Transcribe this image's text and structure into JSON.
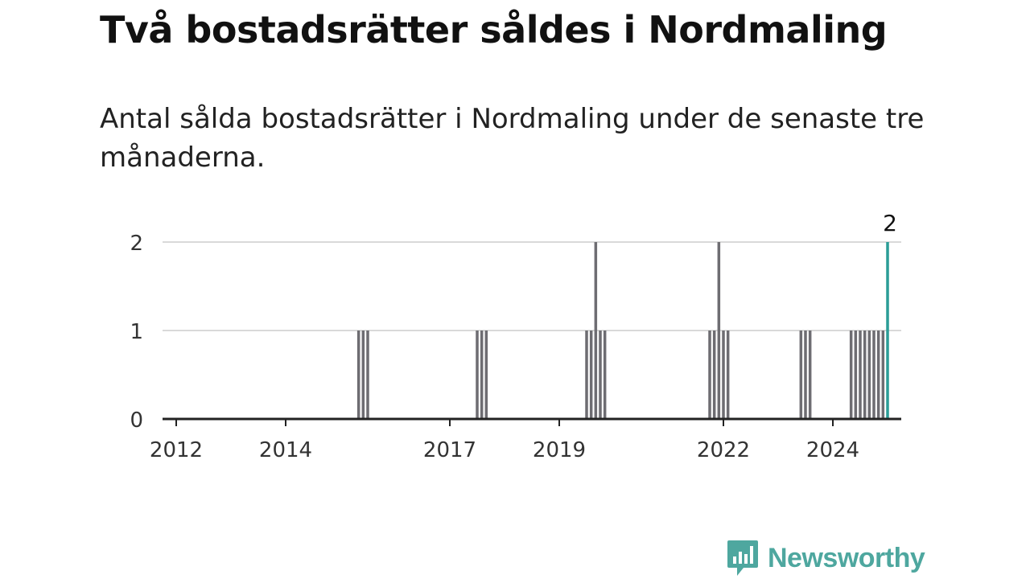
{
  "header": {
    "title": "Två bostadsrätter såldes i Nordmaling",
    "subtitle": "Antal sålda bostadsrätter i Nordmaling under de senaste tre månaderna."
  },
  "brand": {
    "name": "Newsworthy",
    "color": "#4ea79f",
    "icon": "chart-bubble-icon"
  },
  "colors": {
    "bar": "#6e6d72",
    "highlight": "#2a9d97",
    "grid": "#d9d9d9",
    "axis": "#222222"
  },
  "chart_data": {
    "type": "bar",
    "title": "Två bostadsrätter såldes i Nordmaling",
    "subtitle": "Antal sålda bostadsrätter i Nordmaling under de senaste tre månaderna.",
    "xlabel": "",
    "ylabel": "",
    "x_range": [
      "2011-10",
      "2025-04"
    ],
    "ylim": [
      0,
      2
    ],
    "yticks": [
      0,
      1,
      2
    ],
    "xticks": [
      "2012",
      "2014",
      "2017",
      "2019",
      "2022",
      "2024"
    ],
    "grid": true,
    "legend": "none",
    "series": [
      {
        "periods": [
          "2015-05",
          "2015-06",
          "2015-07",
          "2017-07",
          "2017-08",
          "2017-09",
          "2019-07",
          "2019-08",
          "2019-09",
          "2019-10",
          "2019-11",
          "2021-10",
          "2021-11",
          "2021-12",
          "2022-01",
          "2022-02",
          "2023-06",
          "2023-07",
          "2023-08",
          "2024-05",
          "2024-06",
          "2024-07",
          "2024-08",
          "2024-09",
          "2024-10",
          "2024-11",
          "2024-12",
          "2025-01"
        ],
        "values": [
          1,
          1,
          1,
          1,
          1,
          1,
          1,
          1,
          2,
          1,
          1,
          1,
          1,
          2,
          1,
          1,
          1,
          1,
          1,
          1,
          1,
          1,
          1,
          1,
          1,
          1,
          1,
          2
        ]
      }
    ],
    "annotations": [
      {
        "period": "2025-01",
        "label": "2"
      }
    ]
  }
}
